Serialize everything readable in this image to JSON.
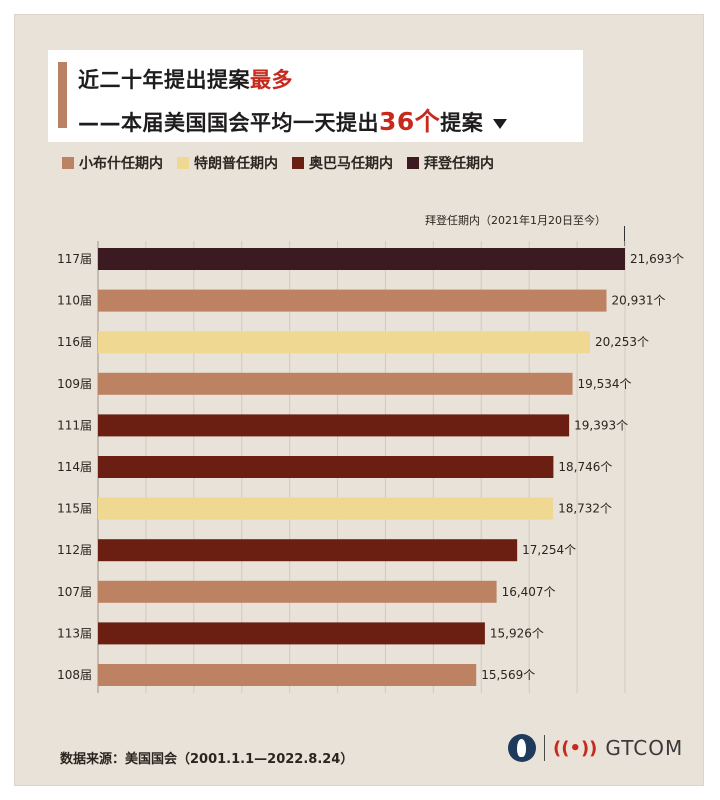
{
  "title": {
    "line1_prefix": "近二十年提出提案",
    "line1_highlight": "最多",
    "line2_prefix": "——本届美国国会平均一天提出",
    "line2_highlight": "36个",
    "line2_suffix": "提案"
  },
  "legend": [
    {
      "label": "小布什任期内",
      "color": "#bd8262"
    },
    {
      "label": "特朗普任期内",
      "color": "#efd992"
    },
    {
      "label": "奥巴马任期内",
      "color": "#6b1f12"
    },
    {
      "label": "拜登任期内",
      "color": "#3b1a22"
    }
  ],
  "annotation": "拜登任期内（2021年1月20日至今）",
  "chart_data": {
    "type": "bar",
    "orientation": "horizontal",
    "categories": [
      "117届",
      "110届",
      "116届",
      "109届",
      "111届",
      "114届",
      "115届",
      "112届",
      "107届",
      "113届",
      "108届"
    ],
    "values": [
      21693,
      20931,
      20253,
      19534,
      19393,
      18746,
      18732,
      17254,
      16407,
      15926,
      15569
    ],
    "value_labels": [
      "21,693个",
      "20,931个",
      "20,253个",
      "19,534个",
      "19,393个",
      "18,746个",
      "18,732个",
      "17,254个",
      "16,407个",
      "15,926个",
      "15,569个"
    ],
    "bar_colors": [
      "#3b1a22",
      "#bd8262",
      "#efd992",
      "#bd8262",
      "#6b1f12",
      "#6b1f12",
      "#efd992",
      "#6b1f12",
      "#bd8262",
      "#6b1f12",
      "#bd8262"
    ],
    "xlim": [
      0,
      21693
    ],
    "grid": "vertical"
  },
  "footer": {
    "source": "数据来源：美国国会（2001.1.1—2022.8.24）",
    "brand": "GTCOM"
  }
}
